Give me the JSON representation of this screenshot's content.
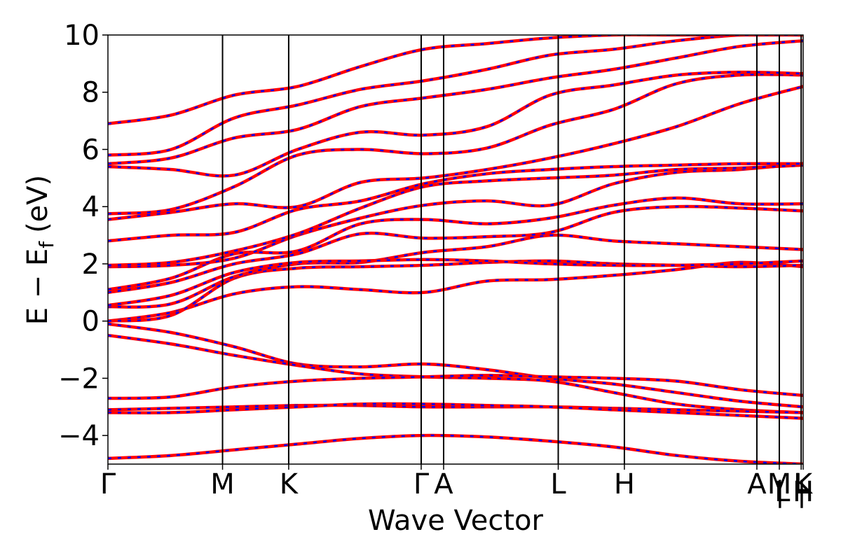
{
  "chart_data": {
    "type": "line",
    "xlabel": "Wave Vector",
    "ylabel": "E − E",
    "ylabel_sub": "f",
    "ylabel_unit": "(eV)",
    "ylim": [
      -5,
      10
    ],
    "y_ticks": [
      -4,
      -2,
      0,
      2,
      4,
      6,
      8,
      10
    ],
    "y_tick_labels": [
      "−4",
      "−2",
      "0",
      "2",
      "4",
      "6",
      "8",
      "10"
    ],
    "kpath": {
      "positions": [
        0,
        0.577,
        0.91,
        1.577,
        1.69,
        2.267,
        2.6,
        3.267,
        3.38,
        3.49,
        3.5
      ],
      "labels": [
        "Γ",
        "M",
        "K",
        "Γ",
        "A",
        "L",
        "H",
        "A",
        "M",
        "L",
        "K"
      ],
      "label_rows": [
        "top",
        "top",
        "top",
        "top",
        "top",
        "top",
        "top",
        "top",
        "top",
        "top",
        "top"
      ],
      "extra_labels": [
        {
          "text": "|",
          "at": 3.383
        },
        {
          "text": "L",
          "at": 3.395
        },
        {
          "text": "|",
          "at": 3.493
        },
        {
          "text": "H",
          "at": 3.5
        }
      ]
    },
    "series_colors": {
      "calc_a": "#ff0000",
      "calc_b": "#0000ff"
    },
    "bands": [
      [
        0.0,
        0.3,
        0.95,
        1.2,
        1.1,
        1.0,
        1.4,
        1.45,
        1.6,
        1.8,
        2.05,
        1.9
      ],
      [
        0.0,
        0.2,
        1.5,
        1.85,
        1.9,
        1.95,
        2.05,
        2.1,
        2.0,
        1.95,
        1.9,
        1.95
      ],
      [
        0.5,
        0.6,
        1.55,
        2.0,
        2.05,
        2.4,
        2.6,
        3.0,
        2.8,
        2.7,
        2.6,
        2.5
      ],
      [
        0.55,
        0.9,
        1.7,
        2.05,
        2.1,
        2.15,
        2.1,
        2.0,
        1.95,
        1.95,
        2.0,
        2.1
      ],
      [
        1.0,
        1.35,
        2.0,
        2.35,
        3.05,
        2.9,
        2.95,
        3.1,
        3.8,
        4.0,
        3.95,
        3.85
      ],
      [
        1.1,
        1.5,
        2.35,
        2.45,
        3.4,
        3.55,
        3.4,
        3.6,
        4.05,
        4.3,
        4.1,
        4.1
      ],
      [
        1.9,
        1.95,
        2.2,
        3.0,
        3.6,
        4.05,
        4.2,
        4.05,
        4.8,
        5.2,
        5.3,
        5.5
      ],
      [
        1.95,
        2.05,
        2.45,
        3.05,
        3.95,
        4.7,
        4.9,
        5.0,
        5.1,
        5.3,
        5.35,
        5.45
      ],
      [
        2.8,
        3.0,
        3.1,
        3.9,
        4.2,
        4.8,
        5.15,
        5.3,
        5.4,
        5.45,
        5.5,
        5.5
      ],
      [
        3.55,
        3.8,
        4.1,
        4.0,
        4.85,
        5.0,
        5.3,
        5.7,
        6.2,
        6.8,
        7.6,
        8.2
      ],
      [
        3.75,
        3.9,
        4.7,
        5.8,
        6.0,
        5.85,
        6.05,
        6.85,
        7.4,
        8.3,
        8.6,
        8.6
      ],
      [
        5.4,
        5.3,
        5.1,
        6.0,
        6.6,
        6.5,
        6.8,
        7.9,
        8.25,
        8.6,
        8.7,
        8.65
      ],
      [
        5.5,
        5.7,
        6.4,
        6.7,
        7.5,
        7.8,
        8.1,
        8.5,
        8.8,
        9.2,
        9.6,
        9.8
      ],
      [
        5.8,
        6.0,
        7.1,
        7.55,
        8.1,
        8.4,
        8.8,
        9.3,
        9.5,
        9.8,
        10.0,
        10.0
      ],
      [
        6.9,
        7.2,
        7.9,
        8.2,
        8.9,
        9.5,
        9.7,
        9.9,
        10.0,
        10.0,
        10.0,
        10.0
      ],
      [
        -0.1,
        -0.4,
        -0.9,
        -1.5,
        -1.6,
        -1.5,
        -1.7,
        -2.0,
        -2.2,
        -2.5,
        -2.8,
        -3.0
      ],
      [
        -0.5,
        -0.8,
        -1.2,
        -1.55,
        -1.85,
        -1.95,
        -2.0,
        -2.1,
        -2.5,
        -2.9,
        -3.1,
        -3.2
      ],
      [
        -2.7,
        -2.65,
        -2.3,
        -2.1,
        -2.0,
        -1.95,
        -1.9,
        -1.95,
        -2.0,
        -2.1,
        -2.4,
        -2.6
      ],
      [
        -3.1,
        -3.05,
        -3.0,
        -2.95,
        -2.95,
        -3.0,
        -3.0,
        -3.0,
        -3.05,
        -3.1,
        -3.15,
        -3.2
      ],
      [
        -3.2,
        -3.2,
        -3.1,
        -3.0,
        -2.9,
        -2.9,
        -2.95,
        -3.0,
        -3.1,
        -3.2,
        -3.3,
        -3.4
      ],
      [
        -4.8,
        -4.7,
        -4.5,
        -4.3,
        -4.1,
        -4.0,
        -4.05,
        -4.2,
        -4.4,
        -4.7,
        -4.9,
        -5.0
      ]
    ]
  }
}
